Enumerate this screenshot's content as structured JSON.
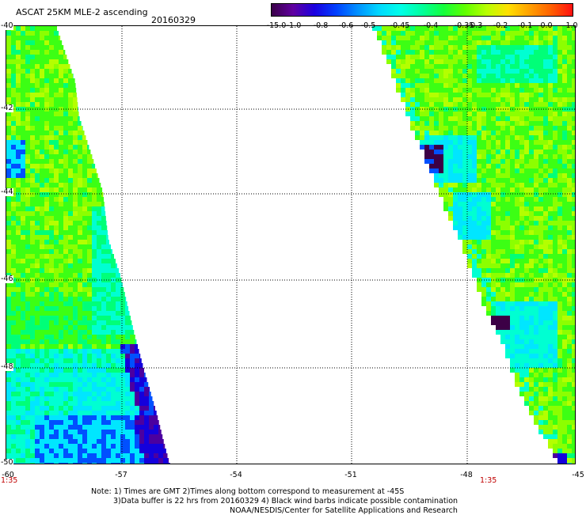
{
  "header": {
    "title": "ASCAT 25KM MLE-2 ascending",
    "date": "20160329"
  },
  "colorbar": {
    "labels": [
      "-15.0",
      "-1.0",
      "-0.8",
      "-0.6",
      "-0.5",
      "-0.45",
      "-0.4",
      "-0.35",
      "-0.3",
      "-0.2",
      "-0.1",
      "0.0",
      "1.0"
    ],
    "colors": [
      "#3a0048",
      "#6000a0",
      "#1a00e0",
      "#0040ff",
      "#0090ff",
      "#00d8ff",
      "#00ffe8",
      "#00ff9c",
      "#14ff3c",
      "#60ff00",
      "#b8ff00",
      "#ffe000",
      "#ffa000",
      "#ff6000",
      "#ff1010"
    ]
  },
  "map": {
    "lat_labels": [
      "-40",
      "-42",
      "-44",
      "-46",
      "-48",
      "-50"
    ],
    "lon_labels": [
      "-60",
      "-57",
      "-54",
      "-51",
      "-48",
      "-45"
    ],
    "time_left": "1:35",
    "time_right": "1:35",
    "palette": {
      "green": "#3cff14",
      "lime": "#8cff00",
      "yellowgreen": "#b4ff00",
      "mint": "#00ff78",
      "cyan": "#00ffd2",
      "aqua": "#00e6ff",
      "blue": "#0050ff",
      "darkblue": "#1400dc",
      "purple": "#4b00a0",
      "darkpurple": "#3c0046"
    }
  },
  "notes": [
    "Note: 1) Times are GMT 2)Times along bottom correspond to measurement at -45S",
    "3)Data buffer is 22 hrs from 20160329 4) Black wind barbs indicate possible contamination",
    "NOAA/NESDIS/Center for Satellite Applications and Research"
  ]
}
